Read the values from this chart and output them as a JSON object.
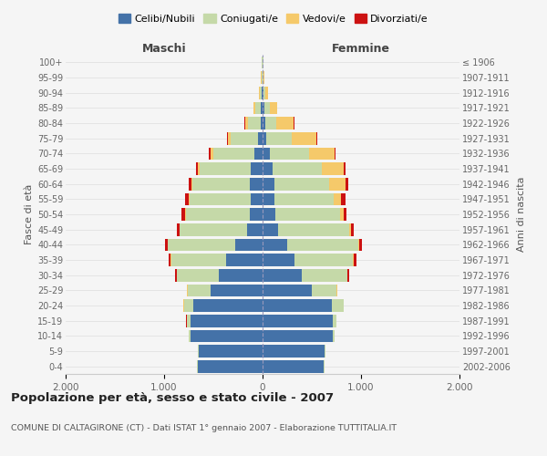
{
  "age_groups": [
    "0-4",
    "5-9",
    "10-14",
    "15-19",
    "20-24",
    "25-29",
    "30-34",
    "35-39",
    "40-44",
    "45-49",
    "50-54",
    "55-59",
    "60-64",
    "65-69",
    "70-74",
    "75-79",
    "80-84",
    "85-89",
    "90-94",
    "95-99",
    "100+"
  ],
  "birth_years": [
    "2002-2006",
    "1997-2001",
    "1992-1996",
    "1987-1991",
    "1982-1986",
    "1977-1981",
    "1972-1976",
    "1967-1971",
    "1962-1966",
    "1957-1961",
    "1952-1956",
    "1947-1951",
    "1942-1946",
    "1937-1941",
    "1932-1936",
    "1927-1931",
    "1922-1926",
    "1917-1921",
    "1912-1916",
    "1907-1911",
    "≤ 1906"
  ],
  "male": {
    "celibi": [
      660,
      650,
      730,
      730,
      700,
      530,
      440,
      370,
      280,
      160,
      130,
      120,
      130,
      120,
      80,
      45,
      20,
      15,
      8,
      3,
      2
    ],
    "coniugati": [
      5,
      5,
      20,
      40,
      100,
      230,
      430,
      560,
      680,
      680,
      650,
      620,
      580,
      520,
      420,
      280,
      130,
      60,
      20,
      8,
      3
    ],
    "vedovi": [
      0,
      0,
      1,
      2,
      3,
      5,
      5,
      5,
      5,
      5,
      10,
      10,
      10,
      20,
      30,
      30,
      30,
      20,
      8,
      3,
      1
    ],
    "divorziati": [
      0,
      0,
      0,
      2,
      3,
      8,
      15,
      20,
      30,
      25,
      30,
      35,
      30,
      20,
      15,
      10,
      5,
      2,
      0,
      0,
      0
    ]
  },
  "female": {
    "nubili": [
      620,
      630,
      710,
      710,
      700,
      500,
      400,
      320,
      250,
      160,
      130,
      120,
      120,
      100,
      70,
      40,
      25,
      20,
      10,
      3,
      2
    ],
    "coniugate": [
      5,
      8,
      20,
      40,
      120,
      250,
      460,
      600,
      720,
      720,
      660,
      600,
      560,
      500,
      400,
      260,
      110,
      50,
      18,
      8,
      3
    ],
    "vedove": [
      0,
      0,
      0,
      2,
      3,
      5,
      5,
      10,
      10,
      20,
      30,
      80,
      160,
      220,
      260,
      250,
      180,
      80,
      30,
      8,
      2
    ],
    "divorziate": [
      0,
      0,
      0,
      2,
      3,
      8,
      15,
      25,
      30,
      30,
      35,
      40,
      30,
      20,
      15,
      10,
      5,
      2,
      0,
      0,
      0
    ]
  },
  "colors": {
    "celibi_nubili": "#4472a8",
    "coniugati_e": "#c5d9a8",
    "vedovi_e": "#f5c96a",
    "divorziati_e": "#cc1111"
  },
  "title": "Popolazione per età, sesso e stato civile - 2007",
  "subtitle": "COMUNE DI CALTAGIRONE (CT) - Dati ISTAT 1° gennaio 2007 - Elaborazione TUTTITALIA.IT",
  "xlabel_left": "Maschi",
  "xlabel_right": "Femmine",
  "ylabel_left": "Fasce di età",
  "ylabel_right": "Anni di nascita",
  "xlim": 2000,
  "legend_labels": [
    "Celibi/Nubili",
    "Coniugati/e",
    "Vedovi/e",
    "Divorziati/e"
  ]
}
